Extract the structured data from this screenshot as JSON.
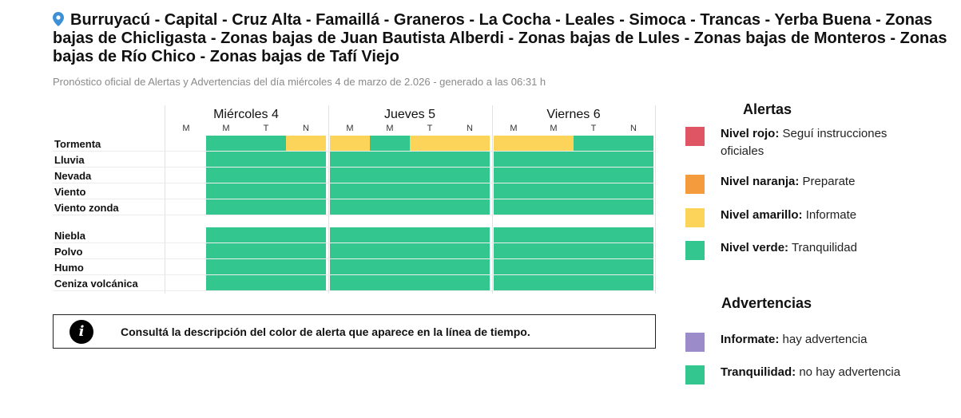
{
  "header": {
    "title": "Burruyacú - Capital - Cruz Alta - Famaillá - Graneros - La Cocha - Leales - Simoca - Trancas - Yerba Buena - Zonas bajas de Chicligasta - Zonas bajas de Juan Bautista Alberdi - Zonas bajas de Lules - Zonas bajas de Monteros - Zonas bajas de Río Chico - Zonas bajas de Tafí Viejo",
    "subtitle": "Pronóstico oficial de Alertas y Advertencias del día miércoles 4 de marzo de 2.026 - generado a las 06:31 h"
  },
  "colors": {
    "rojo": "#e05563",
    "naranja": "#f49b3e",
    "amarillo": "#fcd45a",
    "verde": "#33c78f",
    "violeta": "#9b8cc9"
  },
  "timeline": {
    "days": [
      {
        "label": "Miércoles 4",
        "periods": [
          "M",
          "M",
          "T",
          "N"
        ]
      },
      {
        "label": "Jueves 5",
        "periods": [
          "M",
          "M",
          "T",
          "N"
        ]
      },
      {
        "label": "Viernes 6",
        "periods": [
          "M",
          "M",
          "T",
          "N"
        ]
      }
    ],
    "rows": [
      {
        "label": "Tormenta",
        "levels": [
          "",
          "verde",
          "verde",
          "amarillo",
          "amarillo",
          "verde",
          "amarillo",
          "amarillo",
          "amarillo",
          "amarillo",
          "verde",
          "verde",
          "verde"
        ]
      },
      {
        "label": "Lluvia",
        "levels": [
          "",
          "verde",
          "verde",
          "verde",
          "verde",
          "verde",
          "verde",
          "verde",
          "verde",
          "verde",
          "verde",
          "verde",
          "verde"
        ]
      },
      {
        "label": "Nevada",
        "levels": [
          "",
          "verde",
          "verde",
          "verde",
          "verde",
          "verde",
          "verde",
          "verde",
          "verde",
          "verde",
          "verde",
          "verde",
          "verde"
        ]
      },
      {
        "label": "Viento",
        "levels": [
          "",
          "verde",
          "verde",
          "verde",
          "verde",
          "verde",
          "verde",
          "verde",
          "verde",
          "verde",
          "verde",
          "verde",
          "verde"
        ]
      },
      {
        "label": "Viento zonda",
        "levels": [
          "",
          "verde",
          "verde",
          "verde",
          "verde",
          "verde",
          "verde",
          "verde",
          "verde",
          "verde",
          "verde",
          "verde",
          "verde"
        ]
      },
      {
        "label": "Niebla",
        "levels": [
          "",
          "verde",
          "verde",
          "verde",
          "verde",
          "verde",
          "verde",
          "verde",
          "verde",
          "verde",
          "verde",
          "verde",
          "verde"
        ]
      },
      {
        "label": "Polvo",
        "levels": [
          "",
          "verde",
          "verde",
          "verde",
          "verde",
          "verde",
          "verde",
          "verde",
          "verde",
          "verde",
          "verde",
          "verde",
          "verde"
        ]
      },
      {
        "label": "Humo",
        "levels": [
          "",
          "verde",
          "verde",
          "verde",
          "verde",
          "verde",
          "verde",
          "verde",
          "verde",
          "verde",
          "verde",
          "verde",
          "verde"
        ]
      },
      {
        "label": "Ceniza volcánica",
        "levels": [
          "",
          "verde",
          "verde",
          "verde",
          "verde",
          "verde",
          "verde",
          "verde",
          "verde",
          "verde",
          "verde",
          "verde",
          "verde"
        ]
      }
    ]
  },
  "info": {
    "icon": "info-icon",
    "icon_glyph": "i",
    "text": "Consultá la descripción del color de alerta que aparece en la línea de tiempo."
  },
  "alertas": {
    "title": "Alertas",
    "items": [
      {
        "name": "Nivel rojo:",
        "desc": " Seguí instrucciones oficiales",
        "color": "#e05563"
      },
      {
        "name": "Nivel naranja:",
        "desc": " Preparate",
        "color": "#f49b3e"
      },
      {
        "name": "Nivel amarillo:",
        "desc": " Informate",
        "color": "#fcd45a"
      },
      {
        "name": "Nivel verde:",
        "desc": " Tranquilidad",
        "color": "#33c78f"
      }
    ]
  },
  "advertencias": {
    "title": "Advertencias",
    "items": [
      {
        "name": "Informate:",
        "desc": " hay advertencia",
        "color": "#9b8cc9"
      },
      {
        "name": "Tranquilidad:",
        "desc": " no hay advertencia",
        "color": "#33c78f"
      }
    ]
  }
}
